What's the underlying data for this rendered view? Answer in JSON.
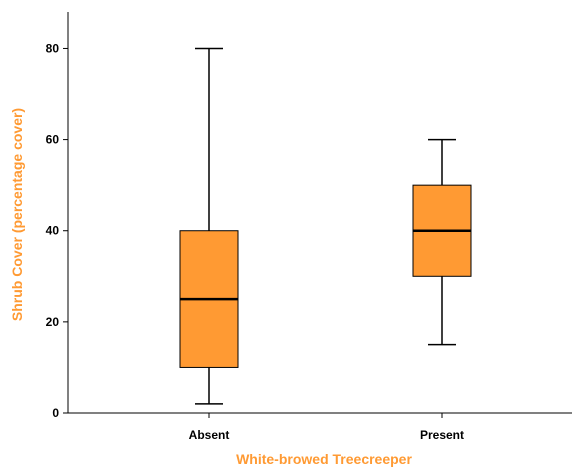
{
  "chart_data": {
    "type": "boxplot",
    "xlabel": "White-browed Treecreeper",
    "ylabel": "Shrub Cover (percentage cover)",
    "categories": [
      "Absent",
      "Present"
    ],
    "boxes": [
      {
        "category": "Absent",
        "min": 2,
        "q1": 10,
        "median": 25,
        "q3": 40,
        "max": 80
      },
      {
        "category": "Present",
        "min": 15,
        "q1": 30,
        "median": 40,
        "q3": 50,
        "max": 60
      }
    ],
    "yticks": [
      "0",
      "20",
      "40",
      "60",
      "80"
    ],
    "ylim": [
      0,
      88
    ],
    "grid": false,
    "colors": {
      "box_fill": "#FF9A33",
      "box_stroke": "#000000",
      "axis_title": "#FF9A33",
      "axis_line": "#000000"
    }
  }
}
